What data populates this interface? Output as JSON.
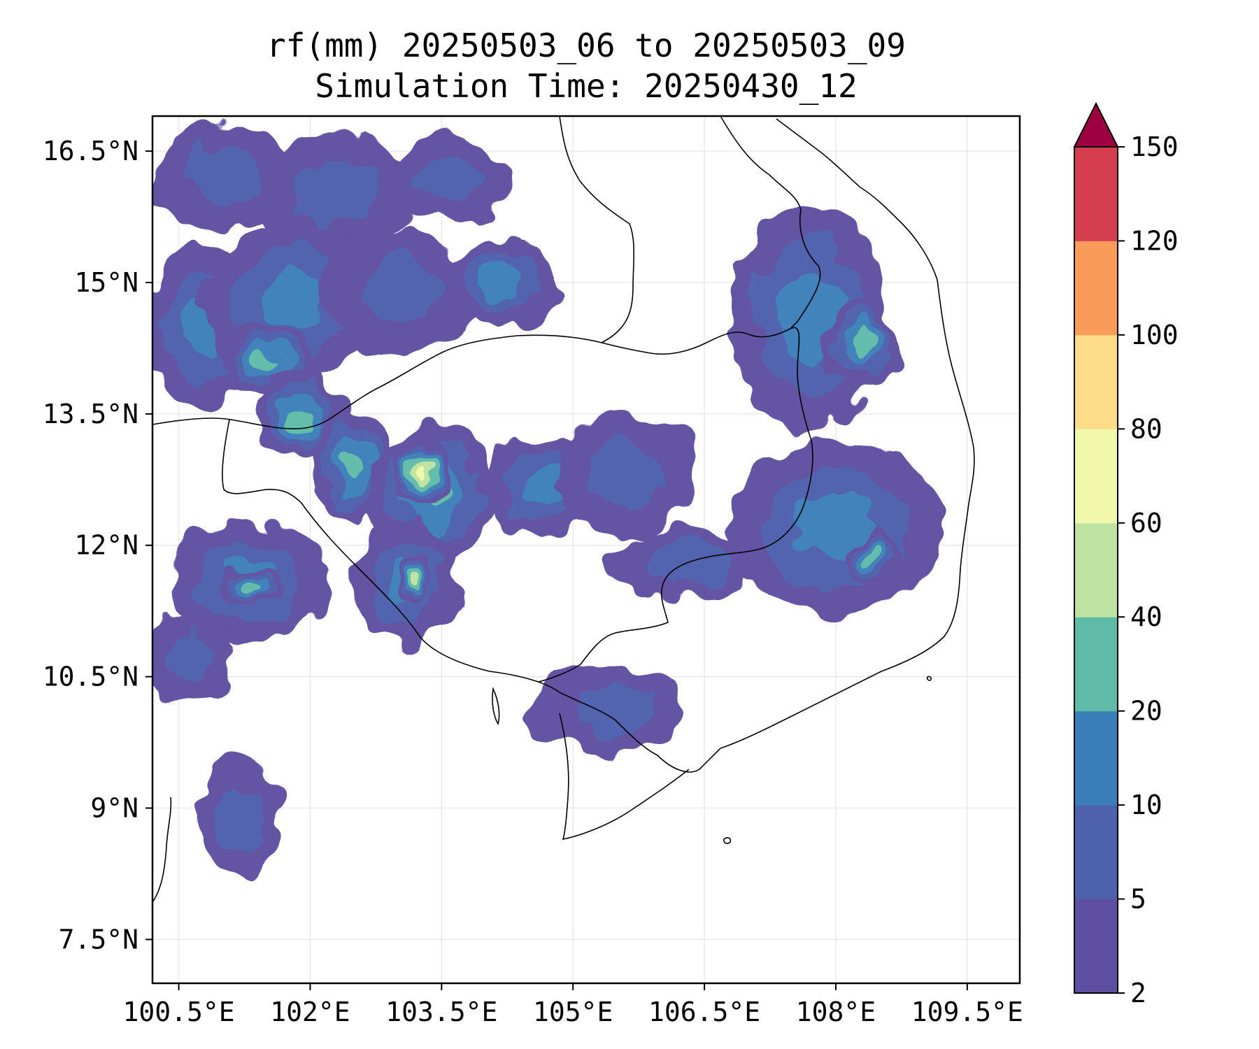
{
  "title": {
    "line1": "rf(mm) 20250503_06 to 20250503_09",
    "line2": "Simulation Time: 20250430_12"
  },
  "map": {
    "lon_range": [
      100.2,
      110.1
    ],
    "lat_range": [
      7.0,
      16.9
    ],
    "x_ticks": [
      {
        "value": 100.5,
        "label": "100.5°E"
      },
      {
        "value": 102.0,
        "label": "102°E"
      },
      {
        "value": 103.5,
        "label": "103.5°E"
      },
      {
        "value": 105.0,
        "label": "105°E"
      },
      {
        "value": 106.5,
        "label": "106.5°E"
      },
      {
        "value": 108.0,
        "label": "108°E"
      },
      {
        "value": 109.5,
        "label": "109.5°E"
      }
    ],
    "y_ticks": [
      {
        "value": 16.5,
        "label": "16.5°N"
      },
      {
        "value": 15.0,
        "label": "15°N"
      },
      {
        "value": 13.5,
        "label": "13.5°N"
      },
      {
        "value": 12.0,
        "label": "12°N"
      },
      {
        "value": 10.5,
        "label": "10.5°N"
      },
      {
        "value": 9.0,
        "label": "9°N"
      },
      {
        "value": 7.5,
        "label": "7.5°N"
      }
    ],
    "grid": true
  },
  "colorbar": {
    "extend": "max",
    "extend_color": "#9e0142",
    "levels": [
      {
        "value": 2,
        "label": "2"
      },
      {
        "value": 5,
        "label": "5"
      },
      {
        "value": 10,
        "label": "10"
      },
      {
        "value": 20,
        "label": "20"
      },
      {
        "value": 40,
        "label": "40"
      },
      {
        "value": 60,
        "label": "60"
      },
      {
        "value": 80,
        "label": "80"
      },
      {
        "value": 100,
        "label": "100"
      },
      {
        "value": 120,
        "label": "120"
      },
      {
        "value": 150,
        "label": "150"
      }
    ],
    "colors": [
      "#5e4fa2",
      "#4d61ac",
      "#3a7fb8",
      "#5fbaa8",
      "#bde3a0",
      "#f1f8ab",
      "#fbdd89",
      "#f99c5a",
      "#d53e4f"
    ]
  },
  "rain_cells": [
    {
      "lon": 101.0,
      "lat": 16.2,
      "rx": 0.8,
      "ry": 0.6,
      "level": 1
    },
    {
      "lon": 102.3,
      "lat": 16.0,
      "rx": 0.9,
      "ry": 0.7,
      "level": 1
    },
    {
      "lon": 103.6,
      "lat": 16.2,
      "rx": 0.7,
      "ry": 0.5,
      "level": 1
    },
    {
      "lon": 100.8,
      "lat": 14.5,
      "rx": 0.7,
      "ry": 0.9,
      "level": 2
    },
    {
      "lon": 101.8,
      "lat": 14.8,
      "rx": 1.0,
      "ry": 0.9,
      "level": 2
    },
    {
      "lon": 101.5,
      "lat": 14.1,
      "rx": 0.5,
      "ry": 0.4,
      "level": 3
    },
    {
      "lon": 103.0,
      "lat": 14.9,
      "rx": 0.9,
      "ry": 0.7,
      "level": 1
    },
    {
      "lon": 104.2,
      "lat": 15.0,
      "rx": 0.6,
      "ry": 0.5,
      "level": 2
    },
    {
      "lon": 101.9,
      "lat": 13.5,
      "rx": 0.5,
      "ry": 0.5,
      "level": 3
    },
    {
      "lon": 102.5,
      "lat": 12.9,
      "rx": 0.5,
      "ry": 0.6,
      "level": 3
    },
    {
      "lon": 103.4,
      "lat": 12.6,
      "rx": 0.7,
      "ry": 0.8,
      "level": 3
    },
    {
      "lon": 103.3,
      "lat": 12.8,
      "rx": 0.3,
      "ry": 0.4,
      "level": 5
    },
    {
      "lon": 103.1,
      "lat": 11.6,
      "rx": 0.6,
      "ry": 0.7,
      "level": 2
    },
    {
      "lon": 103.2,
      "lat": 11.6,
      "rx": 0.2,
      "ry": 0.3,
      "level": 4
    },
    {
      "lon": 101.3,
      "lat": 11.6,
      "rx": 0.9,
      "ry": 0.7,
      "level": 2
    },
    {
      "lon": 101.3,
      "lat": 11.5,
      "rx": 0.4,
      "ry": 0.2,
      "level": 3
    },
    {
      "lon": 104.7,
      "lat": 12.7,
      "rx": 0.7,
      "ry": 0.6,
      "level": 2
    },
    {
      "lon": 105.6,
      "lat": 12.8,
      "rx": 0.8,
      "ry": 0.7,
      "level": 1
    },
    {
      "lon": 107.7,
      "lat": 14.6,
      "rx": 0.9,
      "ry": 1.3,
      "level": 2
    },
    {
      "lon": 108.3,
      "lat": 14.3,
      "rx": 0.4,
      "ry": 0.5,
      "level": 3
    },
    {
      "lon": 108.0,
      "lat": 12.2,
      "rx": 1.2,
      "ry": 1.0,
      "level": 2
    },
    {
      "lon": 108.4,
      "lat": 11.9,
      "rx": 0.3,
      "ry": 0.3,
      "level": 3
    },
    {
      "lon": 106.3,
      "lat": 11.8,
      "rx": 0.9,
      "ry": 0.4,
      "level": 1
    },
    {
      "lon": 105.4,
      "lat": 10.1,
      "rx": 0.9,
      "ry": 0.5,
      "level": 1
    },
    {
      "lon": 101.2,
      "lat": 8.9,
      "rx": 0.5,
      "ry": 0.7,
      "level": 1
    },
    {
      "lon": 100.6,
      "lat": 10.7,
      "rx": 0.5,
      "ry": 0.5,
      "level": 1
    }
  ]
}
